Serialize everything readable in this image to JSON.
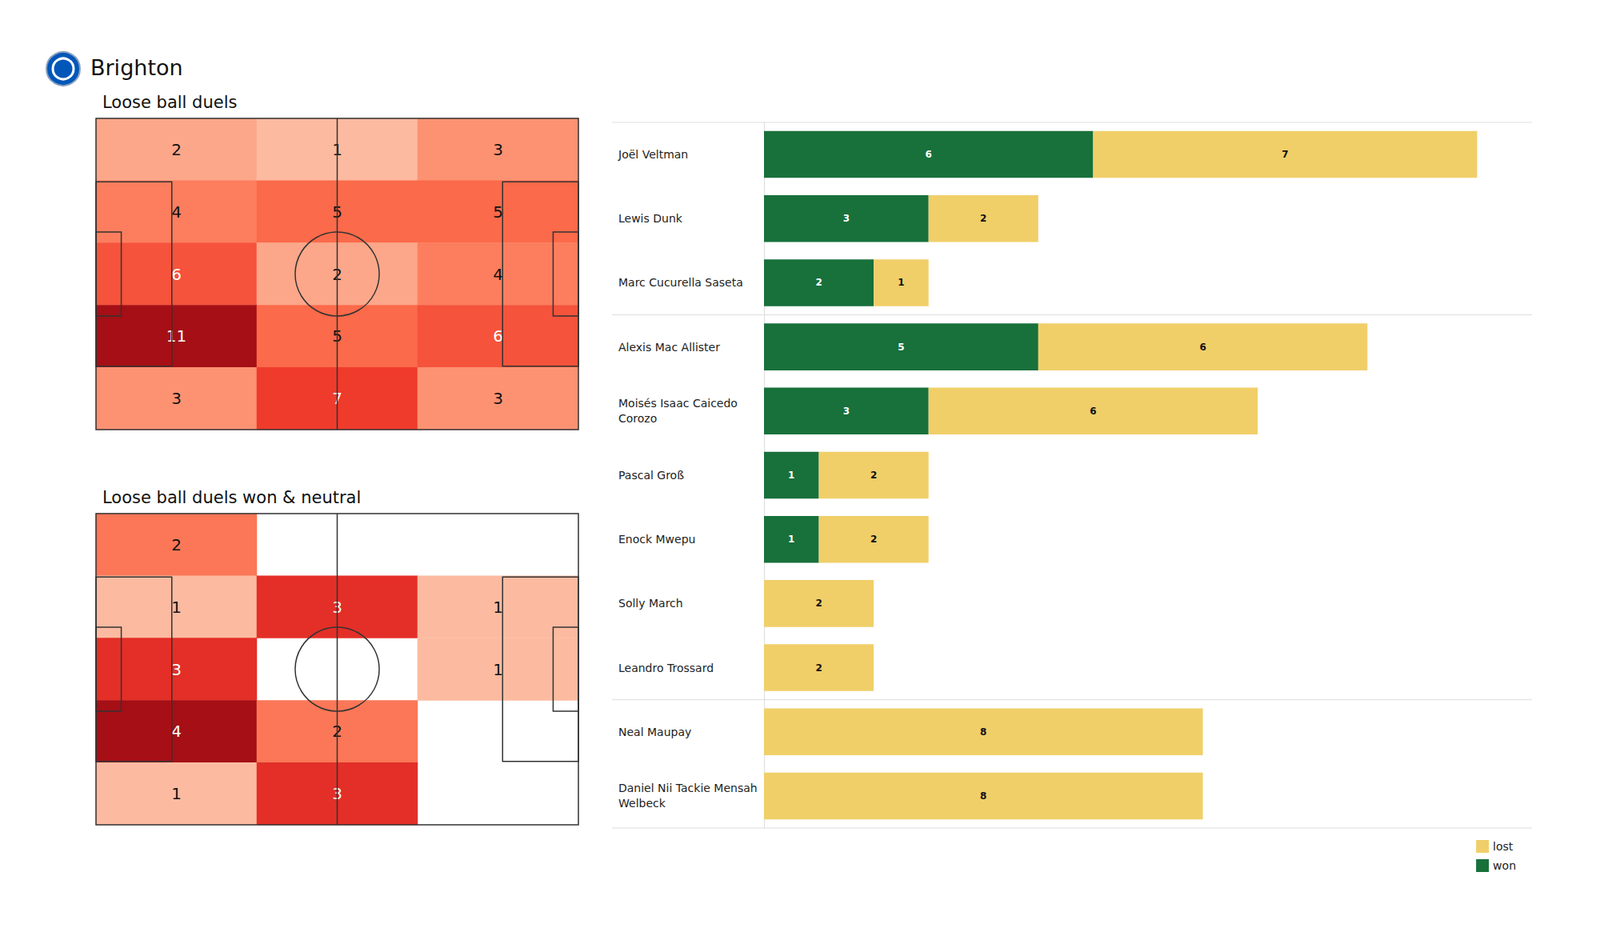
{
  "title": "Brighton",
  "chart_data": [
    {
      "type": "heatmap",
      "title": "Loose ball duels",
      "cells": [
        [
          2,
          1,
          3
        ],
        [
          4,
          5,
          5
        ],
        [
          6,
          2,
          4
        ],
        [
          11,
          5,
          6
        ],
        [
          3,
          7,
          3
        ]
      ],
      "data_labels": true,
      "tick_labels": false
    },
    {
      "type": "heatmap",
      "title": "Loose ball duels won & neutral",
      "cells": [
        [
          2,
          null,
          null
        ],
        [
          1,
          3,
          1
        ],
        [
          3,
          null,
          1
        ],
        [
          4,
          2,
          null
        ],
        [
          1,
          3,
          null
        ]
      ],
      "data_labels": true,
      "tick_labels": false
    },
    {
      "type": "bar",
      "orientation": "horizontal",
      "stacked": true,
      "categories": [
        "Joël Veltman",
        "Lewis Dunk",
        "Marc Cucurella Saseta",
        "Alexis Mac Allister",
        "Moisés Isaac Caicedo Corozo",
        "Pascal Groß",
        "Enock Mwepu",
        "Solly March",
        "Leandro Trossard",
        "Neal Maupay",
        "Daniel Nii Tackie Mensah Welbeck"
      ],
      "series": [
        {
          "name": "won",
          "color": "#18703b",
          "values": [
            6,
            3,
            2,
            5,
            3,
            1,
            1,
            null,
            null,
            null,
            null
          ]
        },
        {
          "name": "lost",
          "color": "#f0cf69",
          "values": [
            7,
            2,
            1,
            6,
            6,
            2,
            2,
            2,
            2,
            8,
            8
          ]
        }
      ],
      "xlim": [
        0,
        14
      ],
      "data_labels": true,
      "tick_labels": "y",
      "legend": "lower right"
    }
  ]
}
